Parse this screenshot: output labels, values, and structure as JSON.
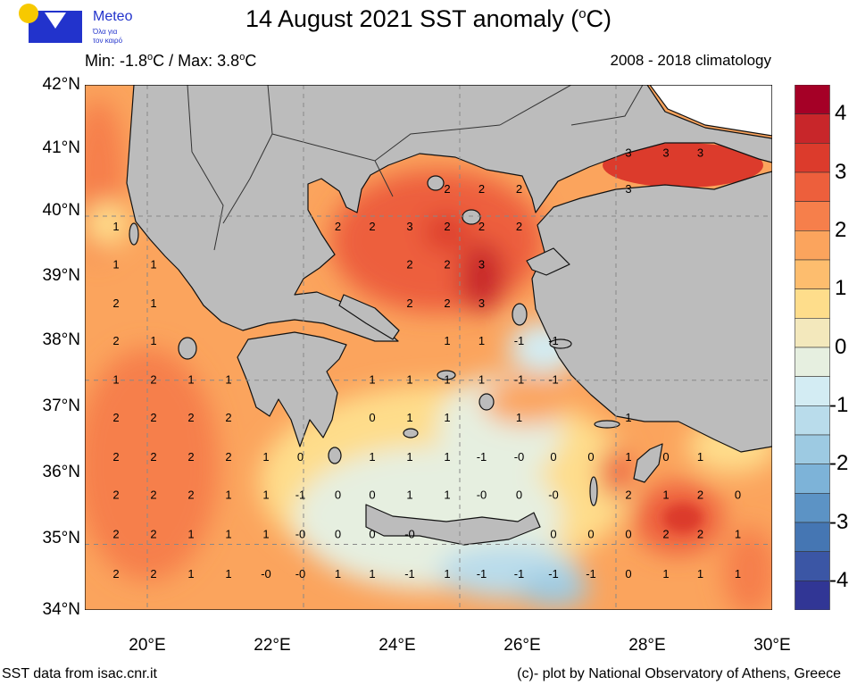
{
  "logo": {
    "brand": "Meteo",
    "tagline_1": "Όλα για",
    "tagline_2": "τον καιρό",
    "sun_color": "#f7c900",
    "brand_color": "#2233cc"
  },
  "header": {
    "title_main": "14 August 2021 SST anomaly (",
    "title_sup": "o",
    "title_end": "C)",
    "min_label": "Min: -1.8",
    "min_unit_sup": "o",
    "min_unit": "C / Max: 3.8",
    "max_unit_sup": "o",
    "max_unit": "C",
    "climatology": "2008 - 2018 climatology"
  },
  "axes": {
    "lat_labels": [
      "42°N",
      "41°N",
      "40°N",
      "39°N",
      "38°N",
      "37°N",
      "36°N",
      "35°N",
      "34°N"
    ],
    "lon_labels": [
      "20°E",
      "22°E",
      "24°E",
      "26°E",
      "28°E",
      "30°E"
    ],
    "lon_range": [
      19,
      30
    ],
    "lat_range": [
      34,
      42
    ],
    "grid_lines": {
      "lon": [
        20,
        22.5,
        25,
        27.5
      ],
      "lat": [
        35,
        37.5,
        40
      ]
    }
  },
  "colorbar": {
    "ticks": [
      "4",
      "3",
      "2",
      "1",
      "0",
      "-1",
      "-2",
      "-3",
      "-4"
    ],
    "range": [
      -4.5,
      4.5
    ],
    "colors": [
      "#a50026",
      "#c8262a",
      "#dc3b2c",
      "#ed5f3c",
      "#f67f4b",
      "#fba45d",
      "#fdbd6e",
      "#fedd8b",
      "#f3e8bc",
      "#e6efe0",
      "#d3ecf3",
      "#b9dceb",
      "#9dcae2",
      "#7db3d8",
      "#5c93c5",
      "#4576b3",
      "#3b56a5",
      "#313695"
    ],
    "land_color": "#bcbcbc"
  },
  "footer": {
    "source": "SST data from isac.cnr.it",
    "credit": "(c)- plot by National Observatory of Athens, Greece"
  },
  "label_grid": {
    "lons": [
      19.5,
      20.1,
      20.7,
      21.3,
      21.9,
      22.45,
      23.05,
      23.6,
      24.2,
      24.8,
      25.35,
      25.95,
      26.5,
      27.1,
      27.7,
      28.3,
      28.85,
      29.45
    ],
    "lats": [
      40.97,
      40.42,
      39.85,
      39.27,
      38.68,
      38.11,
      37.52,
      36.94,
      36.34,
      35.76,
      35.16,
      34.56
    ],
    "values": [
      [
        "",
        "",
        "",
        "",
        "",
        "",
        "",
        "",
        "",
        "",
        "",
        "",
        "",
        "",
        "3",
        "3",
        "3",
        ""
      ],
      [
        "",
        "",
        "",
        "",
        "",
        "",
        "",
        "",
        "",
        "2",
        "2",
        "2",
        "",
        "",
        "3",
        "",
        "",
        ""
      ],
      [
        "1",
        "",
        "",
        "",
        "",
        "",
        "2",
        "2",
        "3",
        "2",
        "2",
        "2",
        "",
        "",
        "",
        "",
        "",
        ""
      ],
      [
        "1",
        "1",
        "",
        "",
        "",
        "",
        "",
        "",
        "2",
        "2",
        "3",
        "",
        "",
        "",
        "",
        "",
        "",
        ""
      ],
      [
        "2",
        "1",
        "",
        "",
        "",
        "",
        "",
        "",
        "2",
        "2",
        "3",
        "",
        "",
        "",
        "",
        "",
        "",
        ""
      ],
      [
        "2",
        "1",
        "",
        "",
        "",
        "",
        "",
        "",
        "",
        "1",
        "1",
        "-1",
        "-1",
        "",
        "",
        "",
        "",
        ""
      ],
      [
        "1",
        "2",
        "1",
        "1",
        "",
        "",
        "",
        "1",
        "1",
        "1",
        "1",
        "-1",
        "-1",
        "",
        "",
        "",
        "",
        ""
      ],
      [
        "2",
        "2",
        "2",
        "2",
        "",
        "",
        "",
        "0",
        "1",
        "1",
        "",
        "1",
        "",
        "",
        "1",
        "",
        "",
        ""
      ],
      [
        "2",
        "2",
        "2",
        "2",
        "1",
        "0",
        "",
        "1",
        "1",
        "1",
        "-1",
        "-0",
        "0",
        "0",
        "1",
        "0",
        "1",
        ""
      ],
      [
        "2",
        "2",
        "2",
        "1",
        "1",
        "-1",
        "0",
        "0",
        "1",
        "1",
        "-0",
        "0",
        "-0",
        "",
        "2",
        "1",
        "2",
        "0"
      ],
      [
        "2",
        "2",
        "1",
        "1",
        "1",
        "-0",
        "0",
        "0",
        "-0",
        "",
        "",
        "",
        "0",
        "0",
        "0",
        "2",
        "2",
        "1"
      ],
      [
        "2",
        "2",
        "1",
        "1",
        "-0",
        "-0",
        "1",
        "1",
        "-1",
        "1",
        "-1",
        "-1",
        "-1",
        "-1",
        "0",
        "1",
        "1",
        "1"
      ]
    ]
  }
}
